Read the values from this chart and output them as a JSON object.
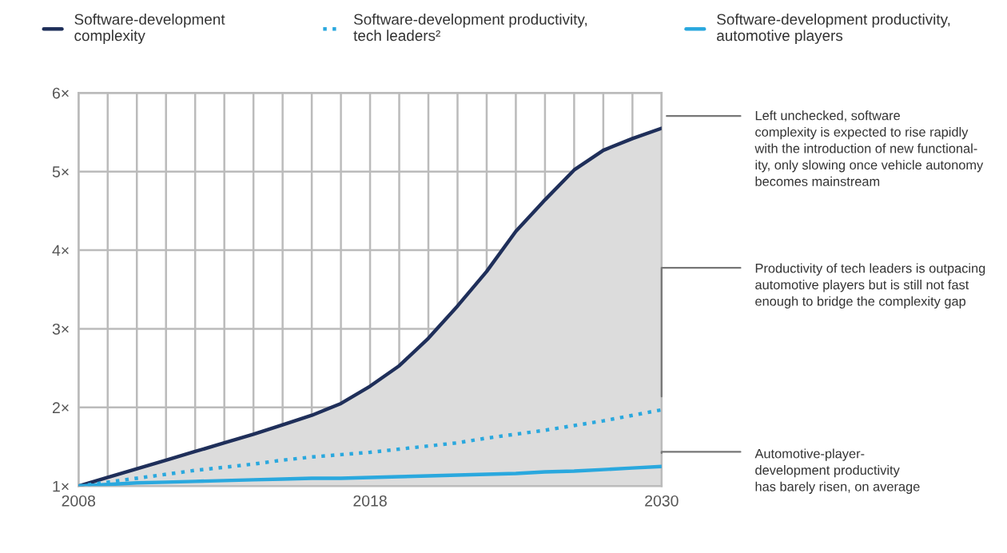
{
  "chart_data": {
    "type": "line",
    "categories": [
      "2008",
      null,
      null,
      null,
      null,
      null,
      null,
      null,
      null,
      null,
      "2018",
      null,
      null,
      null,
      null,
      null,
      null,
      null,
      null,
      null,
      "2030"
    ],
    "series": [
      {
        "name": "Software-development\ncomplexity",
        "type": "area",
        "color": "#1f2f5a",
        "line_style": "solid",
        "values": [
          1.0,
          1.11,
          1.22,
          1.33,
          1.44,
          1.55,
          1.66,
          1.78,
          1.9,
          2.05,
          2.27,
          2.53,
          2.88,
          3.29,
          3.73,
          4.24,
          4.64,
          5.02,
          5.27,
          5.42,
          5.55
        ]
      },
      {
        "name": "Software-development productivity,\ntech leaders²",
        "color": "#2aa8de",
        "line_style": "dotted",
        "values": [
          1.0,
          1.05,
          1.1,
          1.15,
          1.2,
          1.24,
          1.28,
          1.33,
          1.37,
          1.4,
          1.43,
          1.47,
          1.51,
          1.55,
          1.61,
          1.66,
          1.71,
          1.77,
          1.83,
          1.9,
          1.97
        ]
      },
      {
        "name": "Software-development productivity,\nautomotive players",
        "color": "#2aa8de",
        "line_style": "solid",
        "values": [
          1.0,
          1.02,
          1.04,
          1.05,
          1.06,
          1.07,
          1.08,
          1.09,
          1.1,
          1.1,
          1.11,
          1.12,
          1.13,
          1.14,
          1.15,
          1.16,
          1.18,
          1.19,
          1.21,
          1.23,
          1.25
        ]
      }
    ],
    "ylim": [
      1,
      6
    ],
    "yticks": [
      {
        "value": 1,
        "label": "1×"
      },
      {
        "value": 2,
        "label": "2×"
      },
      {
        "value": 3,
        "label": "3×"
      },
      {
        "value": 4,
        "label": "4×"
      },
      {
        "value": 5,
        "label": "5×"
      },
      {
        "value": 6,
        "label": "6×"
      }
    ],
    "grid": true,
    "legend": "top",
    "marker": "none",
    "annotations": [
      {
        "text": "Left unchecked, software\ncomplexity is expected to rise rapidly\nwith the introduction of new functional-\nity, only slowing once vehicle autonomy\nbecomes mainstream",
        "x": "2030",
        "y": 5.55
      },
      {
        "text": "Productivity of tech leaders is outpacing\nautomotive players but is still not fast\nenough to bridge the complexity gap",
        "x": "2030",
        "y": 1.97
      },
      {
        "text": "Automotive-player-\ndevelopment productivity\nhas barely risen, on average",
        "x": "2030",
        "y": 1.25
      }
    ]
  }
}
